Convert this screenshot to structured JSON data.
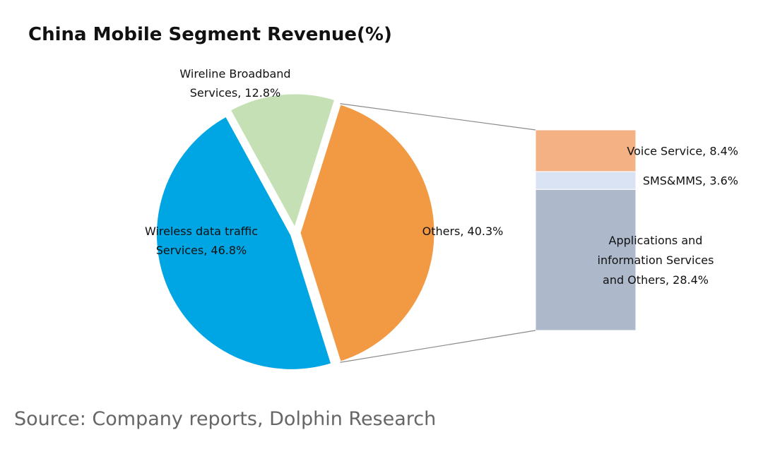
{
  "chart_data": {
    "type": "pie",
    "title": "China Mobile Segment Revenue(%)",
    "slices": [
      {
        "name": "Wireless data traffic Services",
        "label_lines": [
          "Wireless data traffic",
          "Services, 46.8%"
        ],
        "value": 46.8,
        "color": "#00a5e3"
      },
      {
        "name": "Wireline Broadband Services",
        "label_lines": [
          "Wireline Broadband",
          "Services, 12.8%"
        ],
        "value": 12.8,
        "color": "#c5e0b4"
      },
      {
        "name": "Others",
        "label_lines": [
          "Others, 40.3%"
        ],
        "value": 40.3,
        "color": "#f29a43"
      }
    ],
    "breakdown": {
      "of": "Others",
      "segments": [
        {
          "name": "Voice Service",
          "label_lines": [
            "Voice Service, 8.4%"
          ],
          "value": 8.4,
          "color": "#f4b183"
        },
        {
          "name": "SMS&MMS",
          "label_lines": [
            "SMS&MMS, 3.6%"
          ],
          "value": 3.6,
          "color": "#dae3f3"
        },
        {
          "name": "Applications and information Services and Others",
          "label_lines": [
            "Applications and",
            "information Services",
            "and Others, 28.4%"
          ],
          "value": 28.4,
          "color": "#adb9ca"
        }
      ]
    }
  },
  "source": "Source: Company reports, Dolphin Research"
}
